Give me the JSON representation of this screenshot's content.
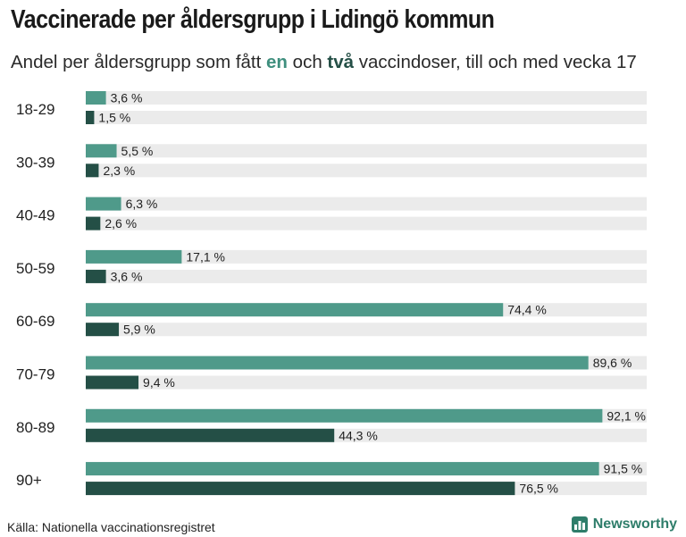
{
  "title": "Vaccinerade per åldersgrupp i Lidingö kommun",
  "subtitle": {
    "part1": "Andel per åldersgrupp som fått ",
    "dose1": "en",
    "part2": " och ",
    "dose2": "två",
    "part3": " vaccindoser, till och med vecka 17"
  },
  "source": "Källa: Nationella vaccinationsregistret",
  "brand": "Newsworthy",
  "colors": {
    "dose1": "#4f9a8a",
    "dose2": "#244f46",
    "track": "#ebebeb"
  },
  "chart_data": {
    "type": "bar",
    "orientation": "horizontal",
    "ylim": [
      0,
      100
    ],
    "categories": [
      "18-29",
      "30-39",
      "40-49",
      "50-59",
      "60-69",
      "70-79",
      "80-89",
      "90+"
    ],
    "series": [
      {
        "key": "dose1",
        "values": [
          3.6,
          5.5,
          6.3,
          17.1,
          74.4,
          89.6,
          92.1,
          91.5
        ],
        "labels": [
          "3,6 %",
          "5,5 %",
          "6,3 %",
          "17,1 %",
          "74,4 %",
          "89,6 %",
          "92,1 %",
          "91,5 %"
        ]
      },
      {
        "key": "dose2",
        "values": [
          1.5,
          2.3,
          2.6,
          3.6,
          5.9,
          9.4,
          44.3,
          76.5
        ],
        "labels": [
          "1,5 %",
          "2,3 %",
          "2,6 %",
          "3,6 %",
          "5,9 %",
          "9,4 %",
          "44,3 %",
          "76,5 %"
        ]
      }
    ]
  }
}
